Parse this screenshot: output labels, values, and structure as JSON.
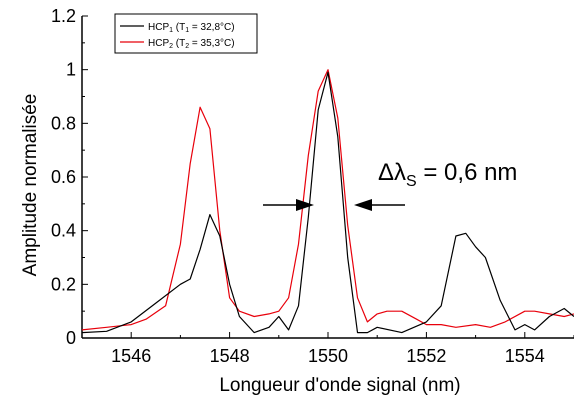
{
  "chart_data": {
    "type": "line",
    "title": "",
    "xlabel": "Longueur d'onde signal (nm)",
    "ylabel": "Amplitude normalisée",
    "xlim": [
      1545,
      1555
    ],
    "ylim": [
      0,
      1.2
    ],
    "xticks": [
      1546,
      1548,
      1550,
      1552,
      1554
    ],
    "yticks": [
      0,
      0.2,
      0.4,
      0.6,
      0.8,
      1,
      1.2
    ],
    "ytick_labels": [
      "0",
      "0.2",
      "0.4",
      "0.6",
      "0.8",
      "1",
      "1.2"
    ],
    "grid": false,
    "legend_position": "top-left",
    "annotation": "Δλ",
    "annotation_sub": "S",
    "annotation_value": " = 0,6 nm",
    "series": [
      {
        "legend_main": "HCP",
        "legend_sub": "1",
        "legend_rest": " (T",
        "legend_sub2": "1",
        "legend_end": " = 32,8°C)",
        "color": "#000000",
        "x": [
          1545,
          1545.5,
          1546,
          1546.5,
          1547,
          1547.2,
          1547.4,
          1547.6,
          1547.8,
          1548,
          1548.2,
          1548.5,
          1548.8,
          1549,
          1549.2,
          1549.4,
          1549.6,
          1549.8,
          1550,
          1550.2,
          1550.4,
          1550.6,
          1550.8,
          1551,
          1551.5,
          1552,
          1552.3,
          1552.6,
          1552.8,
          1553,
          1553.2,
          1553.5,
          1553.8,
          1554,
          1554.2,
          1554.5,
          1554.8,
          1555
        ],
        "y": [
          0.02,
          0.025,
          0.06,
          0.13,
          0.2,
          0.22,
          0.33,
          0.46,
          0.38,
          0.2,
          0.08,
          0.02,
          0.04,
          0.08,
          0.03,
          0.12,
          0.45,
          0.85,
          0.99,
          0.75,
          0.3,
          0.02,
          0.02,
          0.04,
          0.02,
          0.06,
          0.12,
          0.38,
          0.39,
          0.34,
          0.3,
          0.14,
          0.03,
          0.05,
          0.03,
          0.08,
          0.11,
          0.08
        ]
      },
      {
        "legend_main": "HCP",
        "legend_sub": "2",
        "legend_rest": " (T",
        "legend_sub2": "2",
        "legend_end": " = 35,3°C)",
        "color": "#e8000b",
        "x": [
          1545,
          1545.5,
          1546,
          1546.3,
          1546.7,
          1547,
          1547.2,
          1547.4,
          1547.6,
          1547.8,
          1548,
          1548.2,
          1548.5,
          1548.8,
          1549,
          1549.2,
          1549.4,
          1549.6,
          1549.8,
          1550,
          1550.2,
          1550.4,
          1550.6,
          1550.8,
          1551,
          1551.2,
          1551.5,
          1551.8,
          1552,
          1552.3,
          1552.6,
          1553,
          1553.3,
          1553.6,
          1554,
          1554.2,
          1554.5,
          1554.8,
          1555
        ],
        "y": [
          0.03,
          0.04,
          0.05,
          0.07,
          0.12,
          0.35,
          0.65,
          0.86,
          0.78,
          0.4,
          0.15,
          0.1,
          0.08,
          0.09,
          0.1,
          0.15,
          0.35,
          0.68,
          0.92,
          1.0,
          0.82,
          0.42,
          0.15,
          0.06,
          0.09,
          0.1,
          0.1,
          0.07,
          0.05,
          0.05,
          0.04,
          0.05,
          0.04,
          0.06,
          0.1,
          0.1,
          0.09,
          0.08,
          0.09
        ]
      }
    ]
  }
}
